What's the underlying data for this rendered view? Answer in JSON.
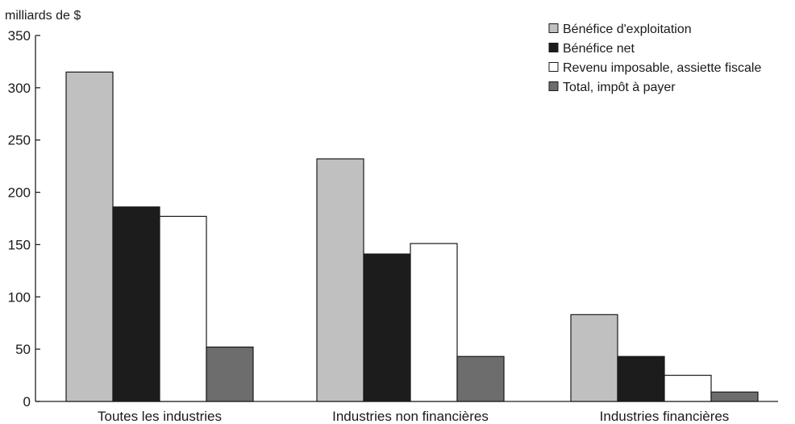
{
  "chart_data": {
    "type": "bar",
    "ylabel": "milliards de $",
    "ylim": [
      0,
      350
    ],
    "yticks": [
      0,
      50,
      100,
      150,
      200,
      250,
      300,
      350
    ],
    "grid": false,
    "legend_position": "top-right",
    "categories": [
      "Toutes les industries",
      "Industries non financières",
      "Industries financières"
    ],
    "series": [
      {
        "name": "Bénéfice d'exploitation",
        "color": "#c0c0c0",
        "values": [
          315,
          232,
          83
        ]
      },
      {
        "name": "Bénéfice net",
        "color": "#1c1c1c",
        "values": [
          186,
          141,
          43
        ]
      },
      {
        "name": "Revenu imposable, assiette fiscale",
        "color": "#ffffff",
        "values": [
          177,
          151,
          25
        ]
      },
      {
        "name": "Total, impôt à payer",
        "color": "#6d6d6d",
        "values": [
          52,
          43,
          9
        ]
      }
    ]
  }
}
